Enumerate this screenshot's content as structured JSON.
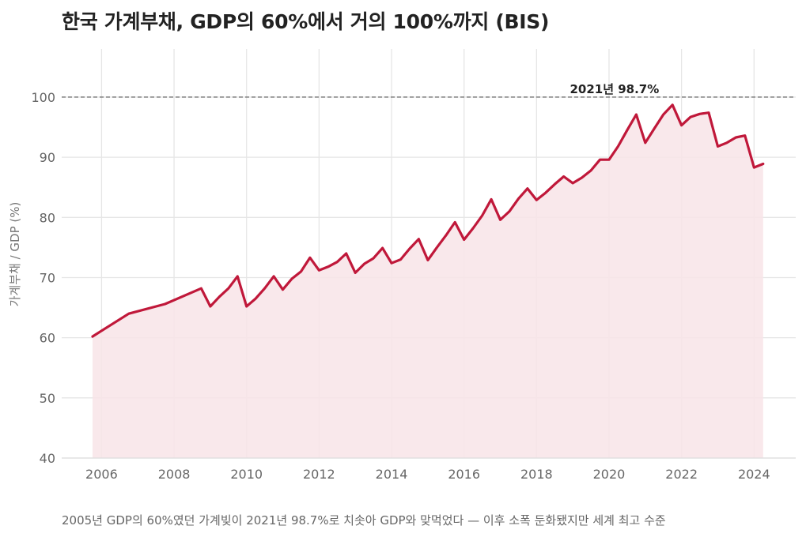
{
  "chart_data": {
    "type": "area",
    "title": "한국 가계부채, GDP의 60%에서 거의 100%까지 (BIS)",
    "caption": "2005년 GDP의 60%였던 가계빚이 2021년 98.7%로 치솟아 GDP와 맞먹었다 — 이후 소폭 둔화됐지만 세계 최고 수준",
    "ylabel": "가계부채 / GDP (%)",
    "xlabel": "",
    "xlim": [
      2004.9,
      2025.15
    ],
    "ylim": [
      40,
      108
    ],
    "x_ticks": [
      2006,
      2008,
      2010,
      2012,
      2014,
      2016,
      2018,
      2020,
      2022,
      2024
    ],
    "y_ticks": [
      40,
      50,
      60,
      70,
      80,
      90,
      100
    ],
    "grid": true,
    "reference_line": {
      "y": 100,
      "style": "dashed"
    },
    "annotation": {
      "text": "2021년 98.7%",
      "x": 2020.15,
      "y": 100
    },
    "colors": {
      "line": "#c0183a",
      "fill": "#f8e4e7",
      "grid": "#e6e6e6",
      "reference": "#777777"
    },
    "series": [
      {
        "x": [
          2005.75,
          2006.75,
          2007.75,
          2008.75,
          2009.0,
          2009.25,
          2009.5,
          2009.75,
          2010.0,
          2010.25,
          2010.5,
          2010.75,
          2011.0,
          2011.25,
          2011.5,
          2011.75,
          2012.0,
          2012.25,
          2012.5,
          2012.75,
          2013.0,
          2013.25,
          2013.5,
          2013.75,
          2014.0,
          2014.25,
          2014.5,
          2014.75,
          2015.0,
          2015.25,
          2015.5,
          2015.75,
          2016.0,
          2016.25,
          2016.5,
          2016.75,
          2017.0,
          2017.25,
          2017.5,
          2017.75,
          2018.0,
          2018.25,
          2018.5,
          2018.75,
          2019.0,
          2019.25,
          2019.5,
          2019.75,
          2020.0,
          2020.25,
          2020.5,
          2020.75,
          2021.0,
          2021.25,
          2021.5,
          2021.75,
          2022.0,
          2022.25,
          2022.5,
          2022.75,
          2023.0,
          2023.25,
          2023.5,
          2023.75,
          2024.0,
          2024.25
        ],
        "y": [
          60.2,
          64.0,
          65.6,
          68.2,
          65.2,
          66.8,
          68.2,
          70.2,
          65.2,
          66.5,
          68.2,
          70.2,
          68.0,
          69.8,
          71.0,
          73.3,
          71.2,
          71.8,
          72.6,
          74.0,
          70.8,
          72.3,
          73.2,
          74.9,
          72.4,
          73.0,
          74.8,
          76.4,
          72.9,
          75.0,
          77.0,
          79.2,
          76.3,
          78.2,
          80.3,
          83.0,
          79.6,
          81.0,
          83.1,
          84.8,
          82.9,
          84.1,
          85.5,
          86.8,
          85.7,
          86.6,
          87.8,
          89.6,
          89.6,
          91.8,
          94.5,
          97.1,
          92.4,
          94.8,
          97.1,
          98.7,
          95.3,
          96.7,
          97.2,
          97.4,
          91.8,
          92.4,
          93.3,
          93.6,
          88.3,
          88.9
        ]
      }
    ]
  }
}
